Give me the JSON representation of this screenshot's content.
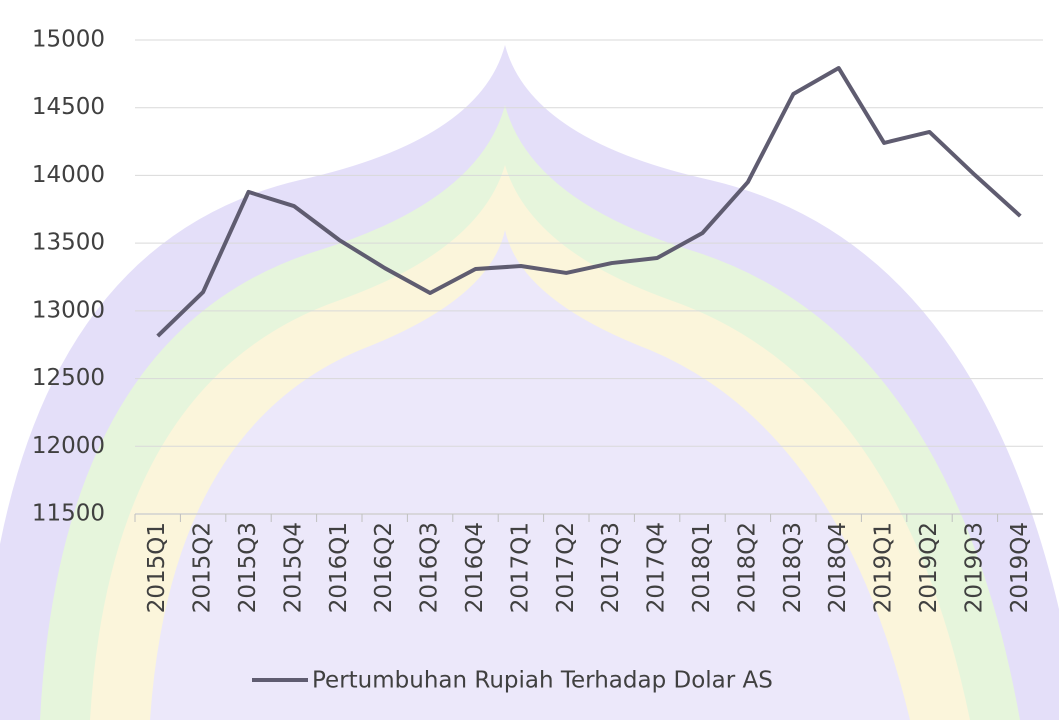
{
  "chart_data": {
    "type": "line",
    "categories": [
      "2015Q1",
      "2015Q2",
      "2015Q3",
      "2015Q4",
      "2016Q1",
      "2016Q2",
      "2016Q3",
      "2016Q4",
      "2017Q1",
      "2017Q2",
      "2017Q3",
      "2017Q4",
      "2018Q1",
      "2018Q2",
      "2018Q3",
      "2018Q4",
      "2019Q1",
      "2019Q2",
      "2019Q3",
      "2019Q4"
    ],
    "series": [
      {
        "name": "Pertumbuhan Rupiah Terhadap Dolar AS",
        "color": "#5f5c70",
        "values": [
          12814,
          13139,
          13878,
          13774,
          13523,
          13316,
          13132,
          13309,
          13331,
          13280,
          13353,
          13390,
          13575,
          13951,
          14601,
          14793,
          14240,
          14321,
          14003,
          13700
        ]
      }
    ],
    "ylim": [
      11500,
      15000
    ],
    "yticks": [
      11500,
      12000,
      12500,
      13000,
      13500,
      14000,
      14500,
      15000
    ],
    "grid": true,
    "legend": "bottom"
  }
}
